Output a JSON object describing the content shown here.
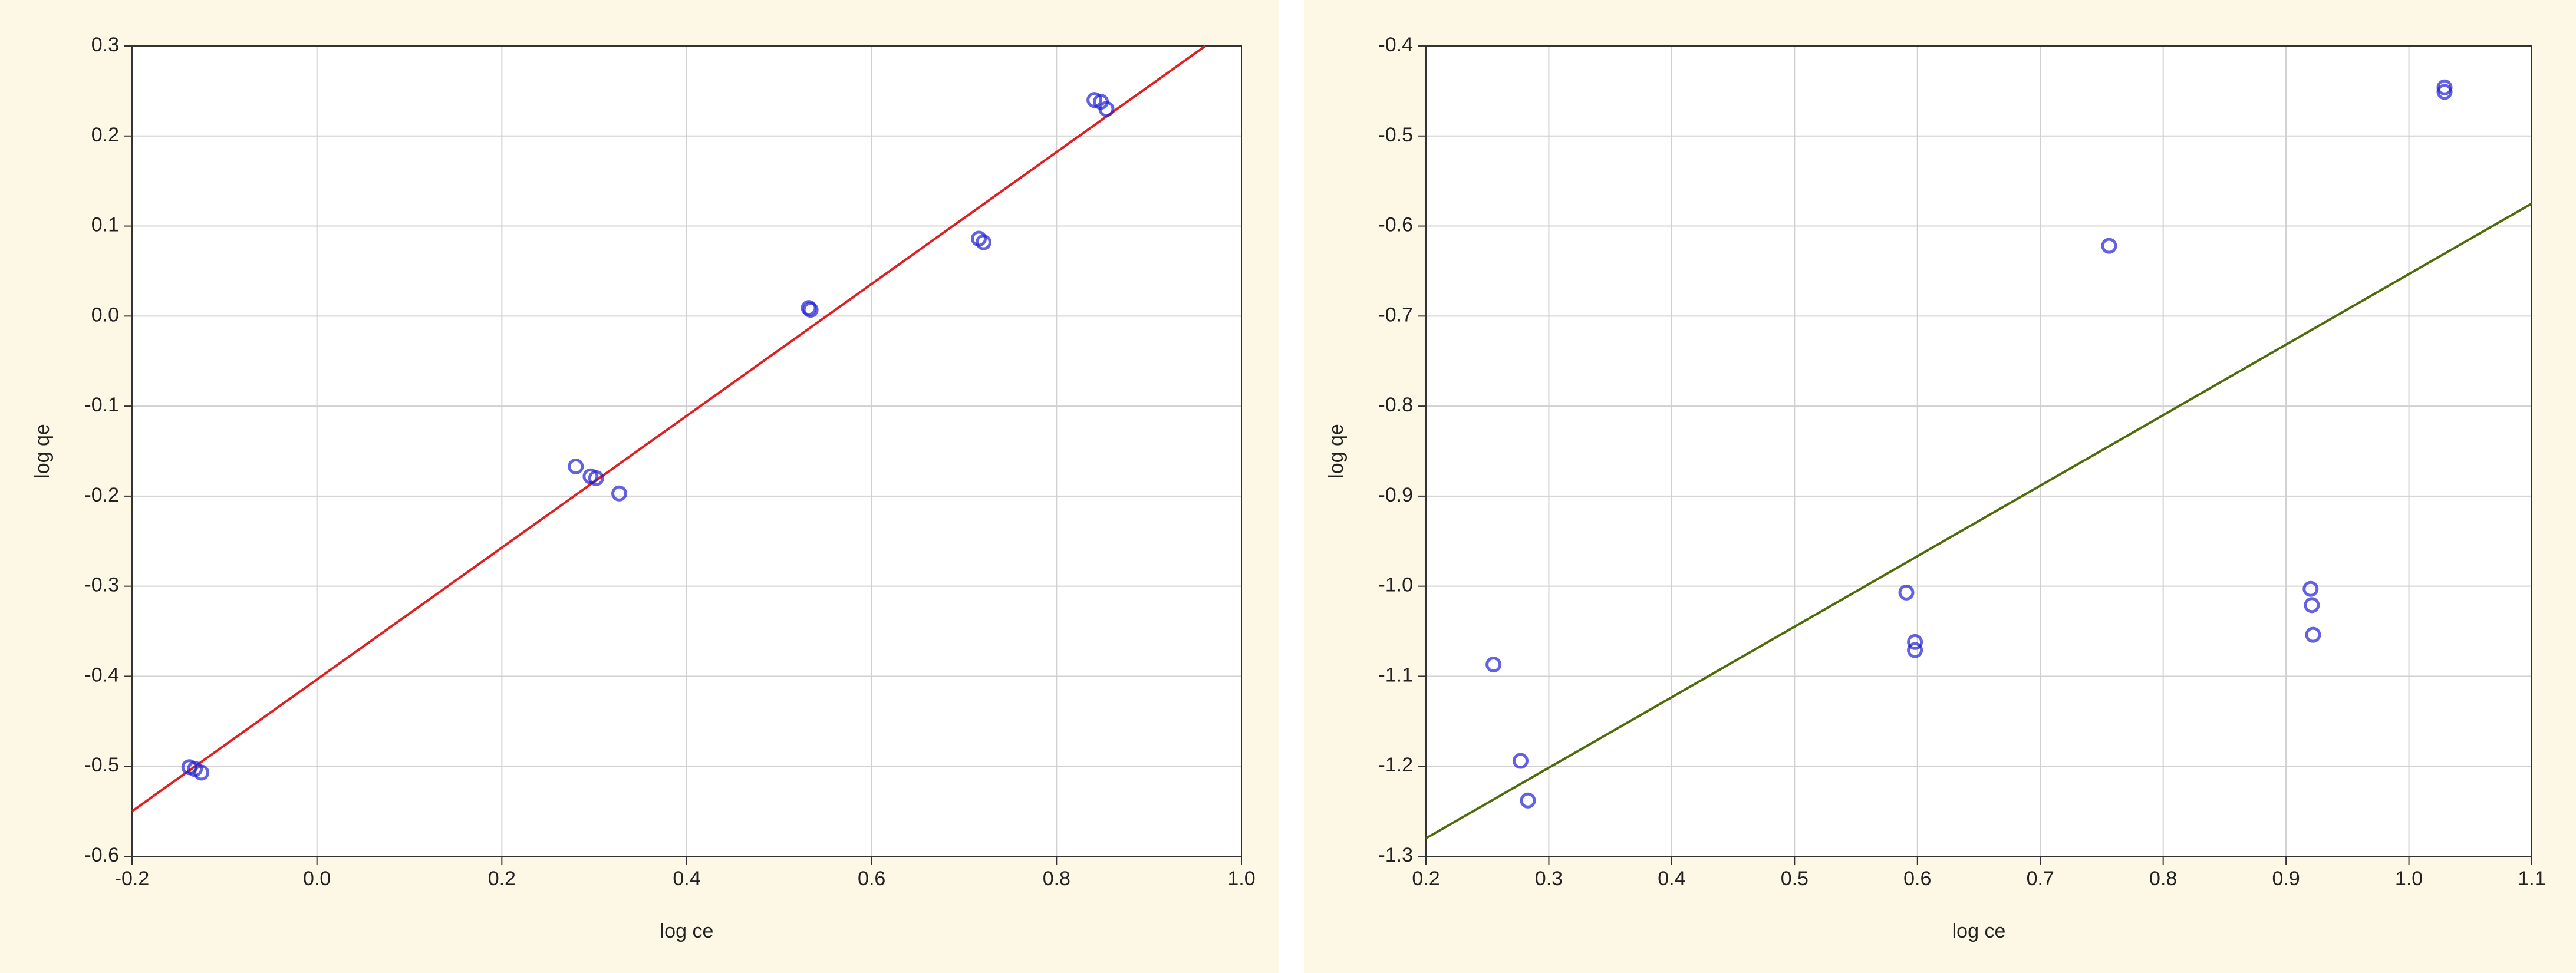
{
  "chart_data": [
    {
      "type": "scatter",
      "x_label": "log ce",
      "y_label": "log qe",
      "xlim": [
        -0.2,
        1.0
      ],
      "ylim": [
        -0.6,
        0.3
      ],
      "xticks": [
        -0.2,
        {
          "value": 0,
          "label": "0.0"
        },
        0.2,
        0.4,
        0.6,
        0.8,
        {
          "value": 1,
          "label": "1.0"
        }
      ],
      "yticks": [
        -0.6,
        -0.5,
        -0.4,
        -0.3,
        -0.2,
        -0.1,
        {
          "value": 0,
          "label": "0.0"
        },
        0.1,
        0.2,
        0.3
      ],
      "grid": true,
      "points": {
        "color": "#1f1fd6",
        "x": [
          -0.138,
          -0.132,
          -0.125,
          0.28,
          0.296,
          0.302,
          0.327,
          0.532,
          0.534,
          0.716,
          0.721,
          0.841,
          0.848,
          0.854
        ],
        "y": [
          -0.501,
          -0.503,
          -0.507,
          -0.167,
          -0.178,
          -0.18,
          -0.197,
          0.009,
          0.007,
          0.086,
          0.082,
          0.24,
          0.238,
          0.23
        ]
      },
      "fit_line": {
        "color": "#e02020",
        "x": [
          -0.2,
          0.961
        ],
        "y": [
          -0.55,
          0.3
        ]
      }
    },
    {
      "type": "scatter",
      "x_label": "log ce",
      "y_label": "log qe",
      "xlim": [
        0.2,
        1.1
      ],
      "ylim": [
        -1.3,
        -0.4
      ],
      "xticks": [
        0.2,
        0.3,
        0.4,
        0.5,
        0.6,
        0.7,
        0.8,
        0.9,
        {
          "value": 1,
          "label": "1.0"
        },
        1.1
      ],
      "yticks": [
        -1.3,
        -1.2,
        -1.1,
        {
          "value": -1,
          "label": "-1.0"
        },
        -0.9,
        -0.8,
        -0.7,
        -0.6,
        -0.5,
        -0.4
      ],
      "grid": true,
      "points": {
        "color": "#1f1fd6",
        "x": [
          0.255,
          0.277,
          0.283,
          0.591,
          0.598,
          0.598,
          0.756,
          0.92,
          0.921,
          0.922,
          1.029,
          1.029
        ],
        "y": [
          -1.087,
          -1.194,
          -1.238,
          -1.007,
          -1.062,
          -1.071,
          -0.622,
          -1.003,
          -1.021,
          -1.054,
          -0.446,
          -0.451
        ]
      },
      "fit_line": {
        "color": "#4f6b0a",
        "x": [
          0.2,
          1.1
        ],
        "y": [
          -1.28,
          -0.575
        ]
      }
    }
  ]
}
